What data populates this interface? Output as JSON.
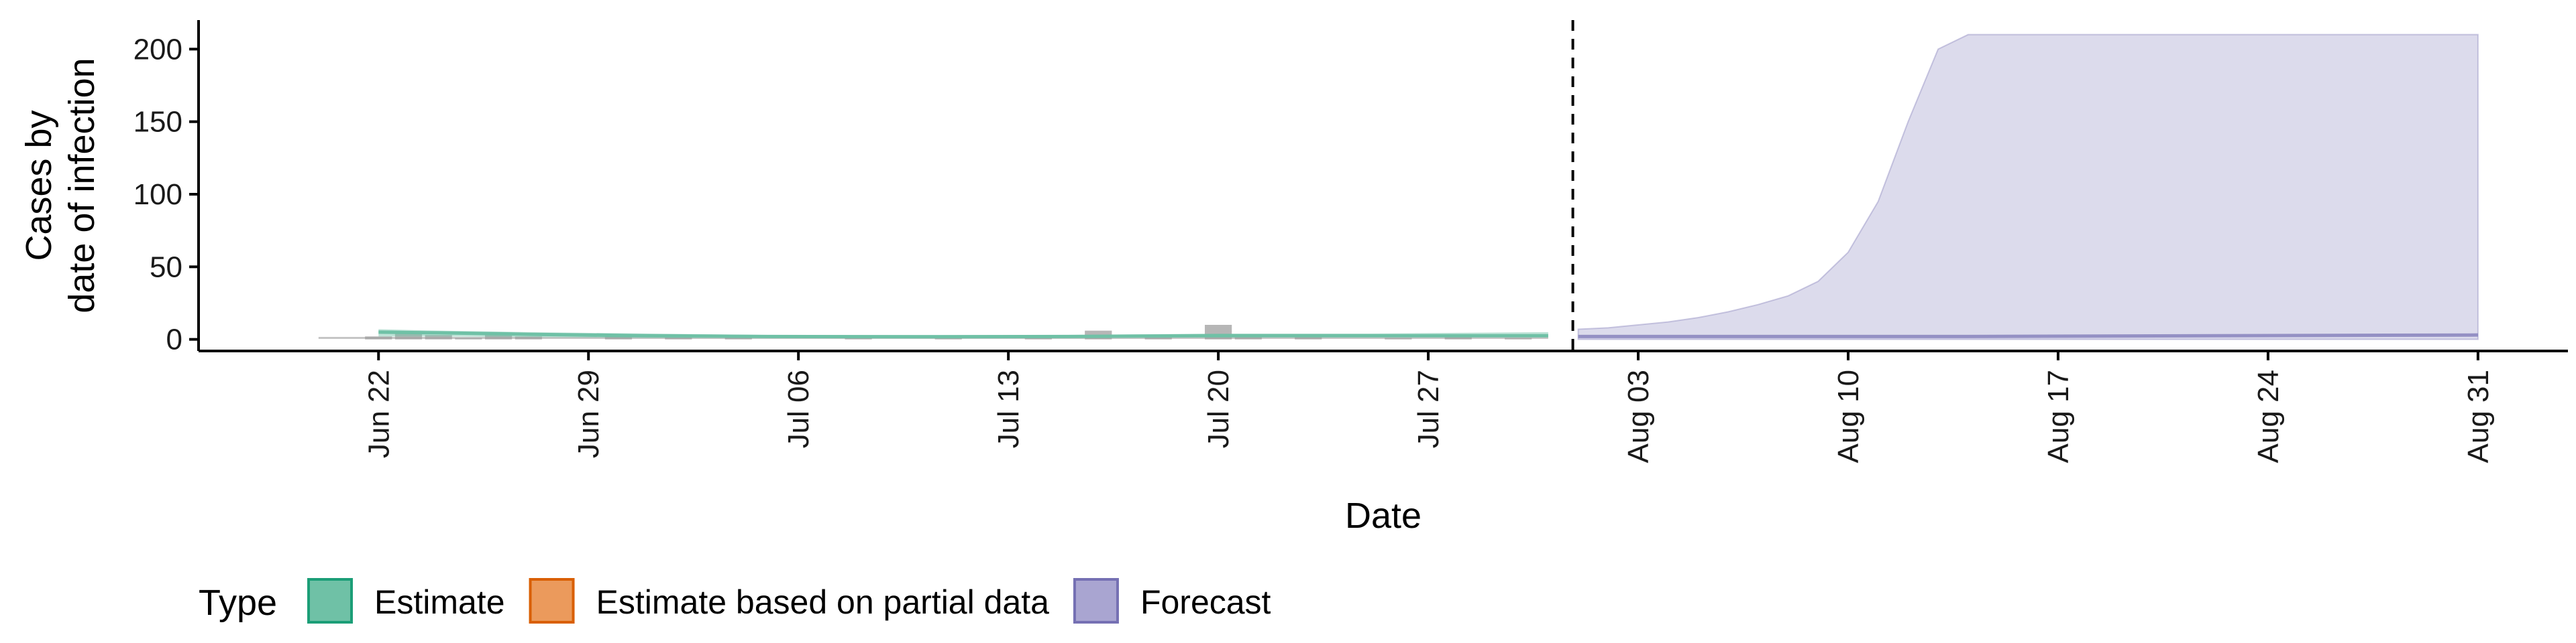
{
  "chart_data": {
    "type": "area",
    "xlabel": "Date",
    "ylabel_lines": [
      "Cases by",
      "date of infection"
    ],
    "x_ticks": [
      "Jun 22",
      "Jun 29",
      "Jul 06",
      "Jul 13",
      "Jul 20",
      "Jul 27",
      "Aug 03",
      "Aug 10",
      "Aug 17",
      "Aug 24",
      "Aug 31"
    ],
    "y_ticks": [
      0,
      50,
      100,
      150,
      200
    ],
    "ylim": [
      -8,
      220
    ],
    "xlim": [
      "2020-06-16",
      "2020-09-03"
    ],
    "forecast_start": "2020-08-01",
    "grid": false,
    "legend": {
      "title": "Type",
      "position": "bottom-left",
      "items": [
        {
          "label": "Estimate",
          "color": "#1b9e77",
          "fill": "#6fc1a6"
        },
        {
          "label": "Estimate based on partial data",
          "color": "#d95f02",
          "fill": "#eb9a5c"
        },
        {
          "label": "Forecast",
          "color": "#7570b3",
          "fill": "#a9a5d1"
        }
      ]
    },
    "observed_cases": {
      "color": "#9e9e9e",
      "points": [
        [
          "2020-06-22",
          2
        ],
        [
          "2020-06-23",
          5
        ],
        [
          "2020-06-24",
          3
        ],
        [
          "2020-06-25",
          1
        ],
        [
          "2020-06-26",
          3
        ],
        [
          "2020-06-27",
          2
        ],
        [
          "2020-06-30",
          2
        ],
        [
          "2020-07-02",
          3
        ],
        [
          "2020-07-04",
          1
        ],
        [
          "2020-07-08",
          1
        ],
        [
          "2020-07-11",
          1
        ],
        [
          "2020-07-14",
          2
        ],
        [
          "2020-07-16",
          6
        ],
        [
          "2020-07-18",
          2
        ],
        [
          "2020-07-20",
          10
        ],
        [
          "2020-07-21",
          2
        ],
        [
          "2020-07-23",
          3
        ],
        [
          "2020-07-26",
          1
        ],
        [
          "2020-07-28",
          2
        ],
        [
          "2020-07-30",
          1
        ]
      ]
    },
    "estimate": {
      "name": "Estimate",
      "x": [
        "2020-06-22",
        "2020-06-24",
        "2020-06-27",
        "2020-07-01",
        "2020-07-05",
        "2020-07-10",
        "2020-07-15",
        "2020-07-20",
        "2020-07-25",
        "2020-07-31"
      ],
      "median": [
        5,
        4.5,
        3.5,
        2.5,
        2,
        1.8,
        2,
        2.5,
        2.5,
        2.5
      ],
      "lower": [
        2,
        2,
        1.5,
        1,
        1,
        1,
        1,
        1.5,
        1.5,
        1.5
      ],
      "upper": [
        7,
        6,
        5,
        4,
        3,
        3,
        3,
        4,
        4,
        5
      ]
    },
    "forecast": {
      "name": "Forecast",
      "x": [
        "2020-08-01",
        "2020-08-02",
        "2020-08-03",
        "2020-08-04",
        "2020-08-05",
        "2020-08-06",
        "2020-08-07",
        "2020-08-08",
        "2020-08-09",
        "2020-08-10",
        "2020-08-11",
        "2020-08-12",
        "2020-08-13",
        "2020-08-14",
        "2020-08-31"
      ],
      "median": [
        2,
        2,
        2,
        2,
        2,
        2,
        2,
        2,
        2,
        2,
        2,
        2,
        2,
        2,
        3
      ],
      "lower": [
        0,
        0,
        0,
        0,
        0,
        0,
        0,
        0,
        0,
        0,
        0,
        0,
        0,
        0,
        0
      ],
      "upper": [
        7,
        8,
        10,
        12,
        15,
        19,
        24,
        30,
        40,
        60,
        95,
        150,
        200,
        210,
        210
      ]
    }
  }
}
